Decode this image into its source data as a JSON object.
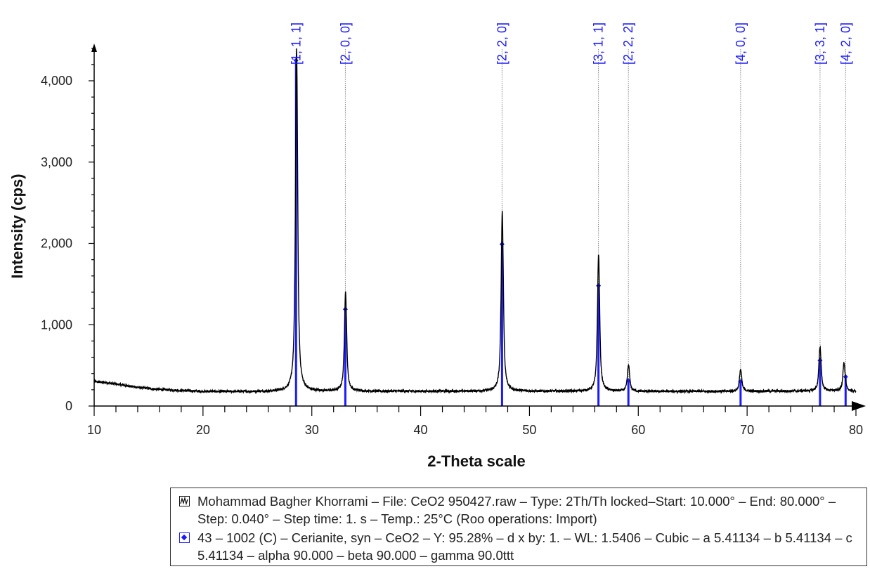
{
  "chart_data": {
    "type": "line",
    "xlabel": "2-Theta scale",
    "ylabel": "Intensity (cps)",
    "xlim": [
      10,
      80
    ],
    "ylim": [
      0,
      4450
    ],
    "x_ticks": [
      10,
      20,
      30,
      40,
      50,
      60,
      70,
      80
    ],
    "x_tick_labels": [
      "10",
      "20",
      "30",
      "40",
      "50",
      "60",
      "70",
      "80"
    ],
    "y_ticks": [
      0,
      1000,
      2000,
      3000,
      4000
    ],
    "y_tick_labels": [
      "0",
      "1,000",
      "2,000",
      "3,000",
      "4,000"
    ],
    "grid": false,
    "colors": {
      "pattern": "#000000",
      "reference": "#1a1aff",
      "guide": "#888888"
    },
    "background": [
      [
        10,
        300
      ],
      [
        11,
        290
      ],
      [
        12,
        270
      ],
      [
        13,
        250
      ],
      [
        14,
        230
      ],
      [
        15,
        215
      ],
      [
        16,
        205
      ],
      [
        18,
        190
      ],
      [
        20,
        180
      ],
      [
        22,
        178
      ],
      [
        25,
        178
      ],
      [
        27,
        180
      ],
      [
        30,
        182
      ],
      [
        35,
        182
      ],
      [
        40,
        182
      ],
      [
        45,
        182
      ],
      [
        50,
        182
      ],
      [
        55,
        182
      ],
      [
        60,
        180
      ],
      [
        65,
        180
      ],
      [
        70,
        182
      ],
      [
        75,
        185
      ],
      [
        78,
        185
      ],
      [
        80,
        180
      ]
    ],
    "peaks": [
      {
        "hkl": "[1, 1, 1]",
        "x": 28.6,
        "height": 4400
      },
      {
        "hkl": "[2, 0, 0]",
        "x": 33.1,
        "height": 1400
      },
      {
        "hkl": "[2, 2, 0]",
        "x": 47.5,
        "height": 2390
      },
      {
        "hkl": "[3, 1, 1]",
        "x": 56.35,
        "height": 1860
      },
      {
        "hkl": "[2, 2, 2]",
        "x": 59.1,
        "height": 500
      },
      {
        "hkl": "[4, 0, 0]",
        "x": 69.4,
        "height": 450
      },
      {
        "hkl": "[3, 3, 1]",
        "x": 76.7,
        "height": 730
      },
      {
        "hkl": "[4, 2, 0]",
        "x": 78.9,
        "height": 530
      }
    ],
    "reference_sticks": [
      {
        "hkl": "[1, 1, 1]",
        "x": 28.55,
        "y": 4250
      },
      {
        "hkl": "[2, 0, 0]",
        "x": 33.08,
        "y": 1190
      },
      {
        "hkl": "[2, 2, 0]",
        "x": 47.48,
        "y": 1990
      },
      {
        "hkl": "[3, 1, 1]",
        "x": 56.34,
        "y": 1480
      },
      {
        "hkl": "[2, 2, 2]",
        "x": 59.09,
        "y": 310
      },
      {
        "hkl": "[4, 0, 0]",
        "x": 69.4,
        "y": 300
      },
      {
        "hkl": "[3, 3, 1]",
        "x": 76.7,
        "y": 560
      },
      {
        "hkl": "[4, 2, 0]",
        "x": 79.05,
        "y": 360
      }
    ]
  },
  "legend": {
    "pattern_entry": "Mohammad Bagher Khorrami – File: CeO2 950427.raw – Type: 2Th/Th locked–Start: 10.000° – End: 80.000° – Step: 0.040° – Step time: 1. s – Temp.: 25°C (Roo operations: Import)",
    "phase_entry": "43 – 1002 (C) – Cerianite, syn – CeO2 – Y: 95.28% – d x by: 1. – WL: 1.5406 – Cubic – a 5.41134 – b 5.41134 – c 5.41134 – alpha 90.000 – beta 90.000 – gamma 90.0ttt"
  }
}
